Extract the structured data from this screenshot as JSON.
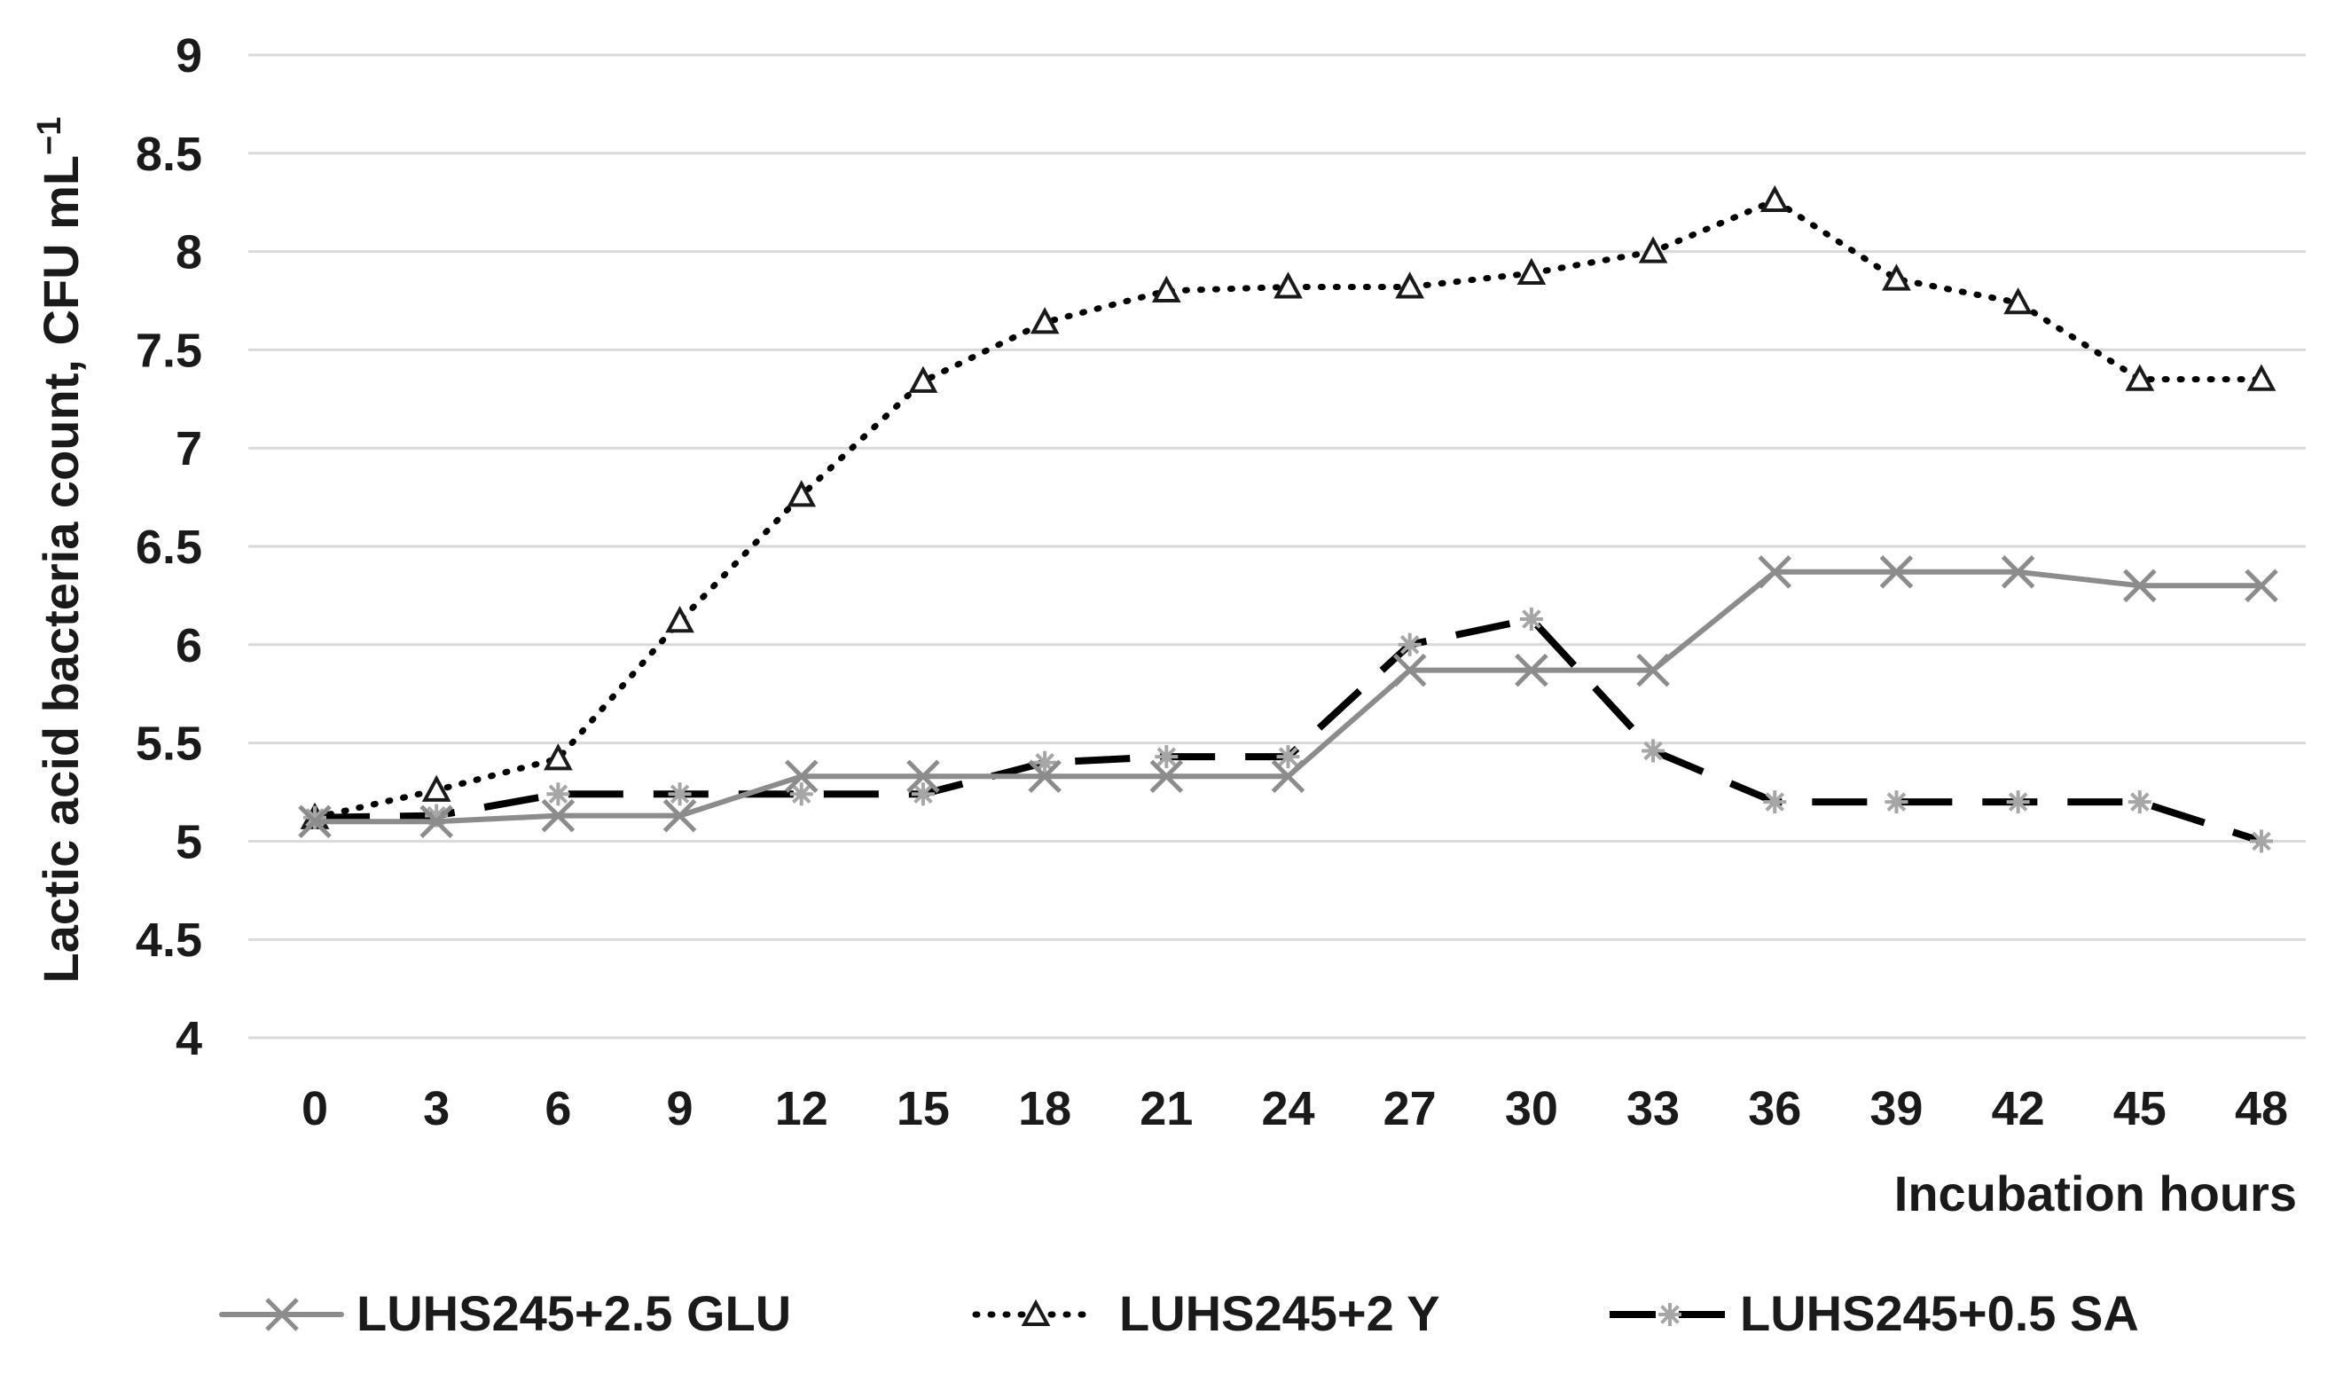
{
  "chart_data": {
    "type": "line",
    "title": "",
    "xlabel": "Incubation hours",
    "ylabel": "Lactic acid bacteria count, CFU mL",
    "ylabel_superscript": "−1",
    "x": [
      0,
      3,
      6,
      9,
      12,
      15,
      18,
      21,
      24,
      27,
      30,
      33,
      36,
      39,
      42,
      45,
      48
    ],
    "ylim": [
      4,
      9
    ],
    "yticks": [
      "4",
      "4.5",
      "5",
      "5.5",
      "6",
      "6.5",
      "7",
      "7.5",
      "8",
      "8.5",
      "9"
    ],
    "grid": true,
    "legend_position": "bottom",
    "series": [
      {
        "name": "LUHS245+2.5 GLU",
        "color": "#8c8c8c",
        "line_style": "solid",
        "marker": "x-icon",
        "values": [
          5.1,
          5.1,
          5.13,
          5.13,
          5.33,
          5.33,
          5.33,
          5.33,
          5.33,
          5.87,
          5.87,
          5.87,
          6.37,
          6.37,
          6.37,
          6.3,
          6.3
        ]
      },
      {
        "name": "LUHS245+2 Y",
        "color": "#000000",
        "line_style": "dotted",
        "marker": "triangle-icon",
        "values": [
          5.12,
          5.26,
          5.42,
          6.12,
          6.76,
          7.34,
          7.64,
          7.8,
          7.82,
          7.82,
          7.89,
          8.0,
          8.26,
          7.86,
          7.74,
          7.35,
          7.35
        ]
      },
      {
        "name": "LUHS245+0.5 SA",
        "color": "#000000",
        "line_style": "dashed",
        "marker": "asterisk-icon",
        "values": [
          5.12,
          5.13,
          5.24,
          5.24,
          5.24,
          5.24,
          5.4,
          5.43,
          5.43,
          6.0,
          6.13,
          5.46,
          5.2,
          5.2,
          5.2,
          5.2,
          5.0
        ]
      }
    ]
  }
}
